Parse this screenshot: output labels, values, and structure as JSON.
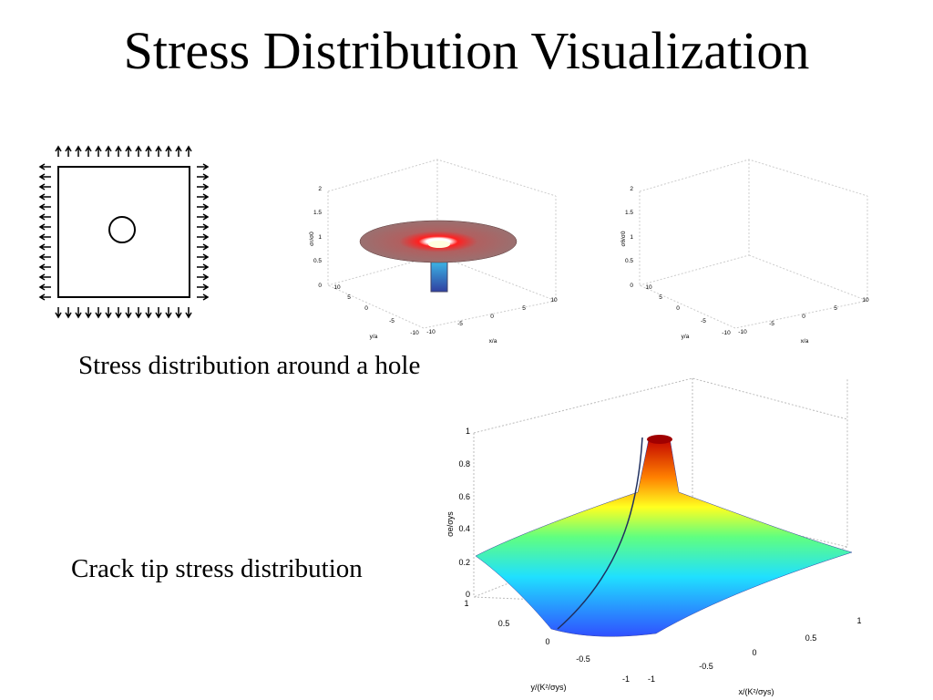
{
  "title": "Stress Distribution Visualization",
  "caption_hole": "Stress distribution around a hole",
  "caption_crack": "Crack tip stress distribution",
  "plot_hole_low": {
    "zticks": [
      0,
      0.5,
      1,
      1.5,
      2
    ],
    "yticks": [
      10,
      5,
      0,
      -5,
      -10
    ],
    "xticks": [
      -10,
      -5,
      0,
      5,
      10
    ],
    "xlabel": "x/a",
    "ylabel": "y/a",
    "zlabel": "σr/σ0"
  },
  "plot_hole_high": {
    "zticks": [
      0,
      0.5,
      1,
      1.5,
      2
    ],
    "yticks": [
      10,
      5,
      0,
      -5,
      -10
    ],
    "xticks": [
      -10,
      -5,
      0,
      5,
      10
    ],
    "xlabel": "x/a",
    "ylabel": "y/a",
    "zlabel": "σθ/σ0"
  },
  "plot_crack": {
    "zticks": [
      0,
      0.2,
      0.4,
      0.6,
      0.8,
      1
    ],
    "yticks": [
      1,
      0.5,
      0,
      -0.5,
      -1
    ],
    "xticks": [
      -1,
      -0.5,
      0,
      0.5,
      1
    ],
    "xlabel": "x/(K²/σys)",
    "ylabel": "y/(K²/σys)",
    "zlabel": "σe/σys"
  }
}
